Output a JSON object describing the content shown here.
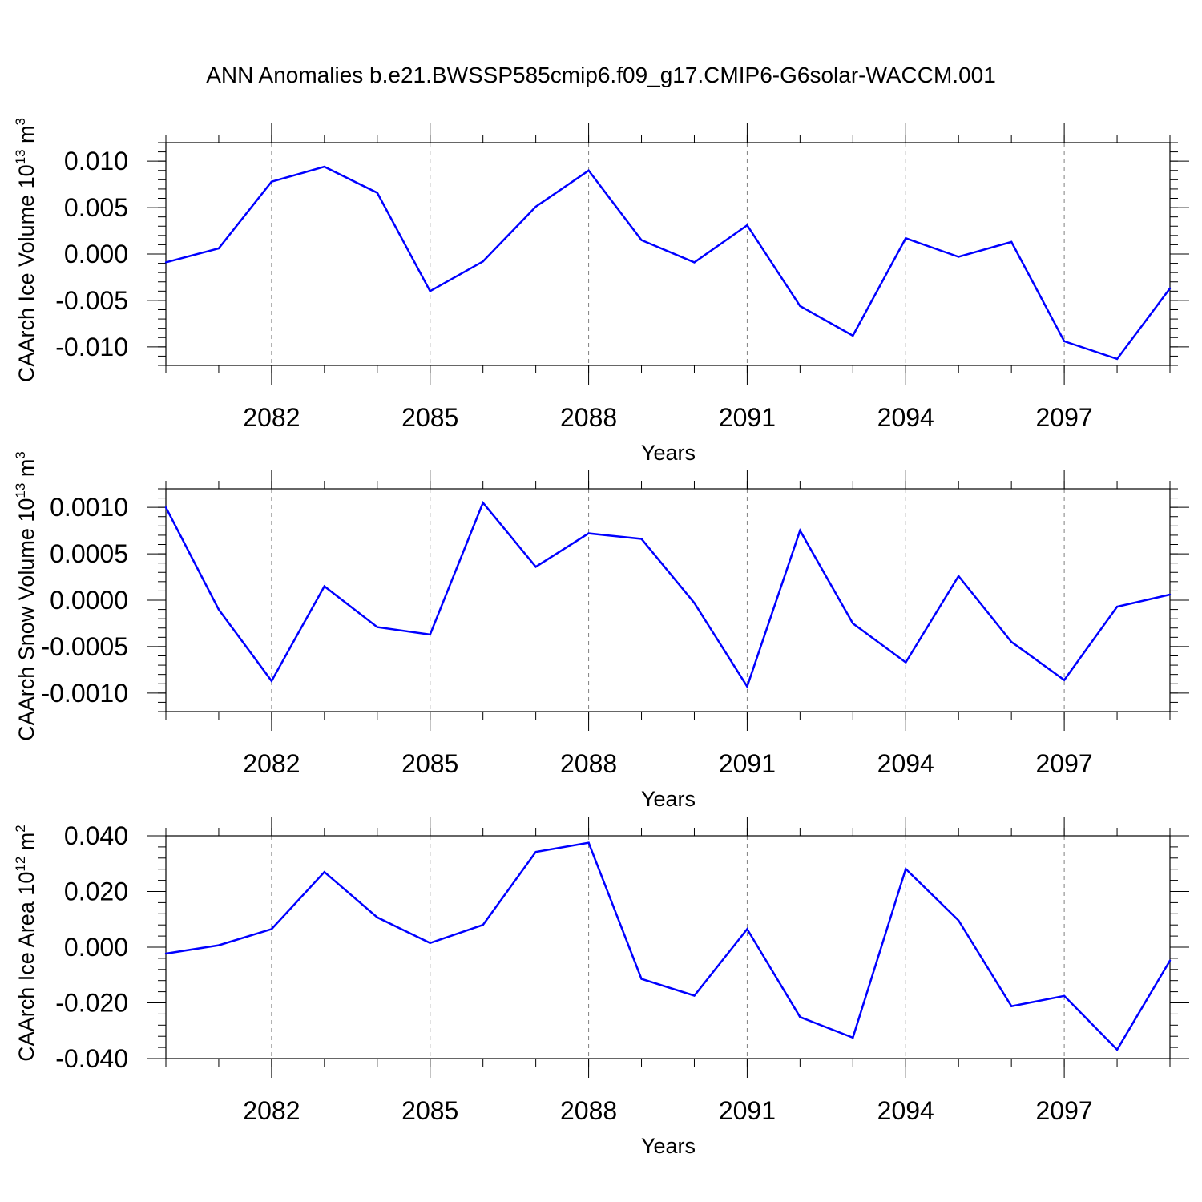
{
  "title": "ANN Anomalies b.e21.BWSSP585cmip6.f09_g17.CMIP6-G6solar-WACCM.001",
  "colors": {
    "line": "#0000ff",
    "axis": "#000000",
    "grid": "#808080"
  },
  "chart_data": [
    {
      "type": "line",
      "ylabel": "CAArch Ice Volume 10",
      "ylabel_exp": "13",
      "ylabel_unit": " m",
      "ylabel_unit_exp": "3",
      "xlabel": "Years",
      "xlim": [
        2080,
        2099
      ],
      "ylim": [
        -0.012,
        0.012
      ],
      "xticks": [
        2082,
        2085,
        2088,
        2091,
        2094,
        2097
      ],
      "xtick_labels": [
        "2082",
        "2085",
        "2088",
        "2091",
        "2094",
        "2097"
      ],
      "yticks": [
        -0.01,
        -0.005,
        0.0,
        0.005,
        0.01
      ],
      "ytick_labels": [
        "-0.010",
        "-0.005",
        "0.000",
        "0.005",
        "0.010"
      ],
      "x": [
        2080,
        2081,
        2082,
        2083,
        2084,
        2085,
        2086,
        2087,
        2088,
        2089,
        2090,
        2091,
        2092,
        2093,
        2094,
        2095,
        2096,
        2097,
        2098,
        2099
      ],
      "values": [
        -0.0009,
        0.0006,
        0.0078,
        0.0094,
        0.0066,
        -0.004,
        -0.0008,
        0.0051,
        0.009,
        0.0015,
        -0.0009,
        0.0031,
        -0.0056,
        -0.0088,
        0.0017,
        -0.0003,
        0.0013,
        -0.0094,
        -0.0113,
        -0.0037
      ]
    },
    {
      "type": "line",
      "ylabel": "CAArch Snow Volume 10",
      "ylabel_exp": "13",
      "ylabel_unit": " m",
      "ylabel_unit_exp": "3",
      "xlabel": "Years",
      "xlim": [
        2080,
        2099
      ],
      "ylim": [
        -0.0012,
        0.0012
      ],
      "xticks": [
        2082,
        2085,
        2088,
        2091,
        2094,
        2097
      ],
      "xtick_labels": [
        "2082",
        "2085",
        "2088",
        "2091",
        "2094",
        "2097"
      ],
      "yticks": [
        -0.001,
        -0.0005,
        0.0,
        0.0005,
        0.001
      ],
      "ytick_labels": [
        "-0.0010",
        "-0.0005",
        "0.0000",
        "0.0005",
        "0.0010"
      ],
      "x": [
        2080,
        2081,
        2082,
        2083,
        2084,
        2085,
        2086,
        2087,
        2088,
        2089,
        2090,
        2091,
        2092,
        2093,
        2094,
        2095,
        2096,
        2097,
        2098,
        2099
      ],
      "values": [
        0.001,
        -0.0001,
        -0.00087,
        0.00015,
        -0.00029,
        -0.00037,
        0.00105,
        0.00036,
        0.00072,
        0.00066,
        -3e-05,
        -0.00093,
        0.00075,
        -0.00025,
        -0.00067,
        0.00026,
        -0.00045,
        -0.00086,
        -7e-05,
        6e-05
      ]
    },
    {
      "type": "line",
      "ylabel": "CAArch Ice Area 10",
      "ylabel_exp": "12",
      "ylabel_unit": " m",
      "ylabel_unit_exp": "2",
      "xlabel": "Years",
      "xlim": [
        2080,
        2099
      ],
      "ylim": [
        -0.04,
        0.04
      ],
      "xticks": [
        2082,
        2085,
        2088,
        2091,
        2094,
        2097
      ],
      "xtick_labels": [
        "2082",
        "2085",
        "2088",
        "2091",
        "2094",
        "2097"
      ],
      "yticks": [
        -0.04,
        -0.02,
        0.0,
        0.02,
        0.04
      ],
      "ytick_labels": [
        "-0.040",
        "-0.020",
        "0.000",
        "0.020",
        "0.040"
      ],
      "x": [
        2080,
        2081,
        2082,
        2083,
        2084,
        2085,
        2086,
        2087,
        2088,
        2089,
        2090,
        2091,
        2092,
        2093,
        2094,
        2095,
        2096,
        2097,
        2098,
        2099
      ],
      "values": [
        -0.0023,
        0.0007,
        0.0065,
        0.027,
        0.0107,
        0.0015,
        0.008,
        0.0342,
        0.0375,
        -0.0114,
        -0.0174,
        0.0065,
        -0.0251,
        -0.0325,
        0.0281,
        0.0096,
        -0.0212,
        -0.0175,
        -0.0368,
        -0.0048
      ]
    }
  ]
}
